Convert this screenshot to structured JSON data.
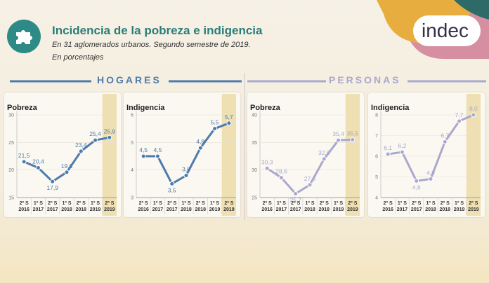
{
  "header": {
    "title": "Incidencia de la pobreza e indigencia",
    "subtitle": "En 31 aglomerados urbanos. Segundo semestre de 2019.",
    "units": "En porcentajes",
    "brand": "indec",
    "logo_icon": "puzzle-piece-icon"
  },
  "sections": {
    "hogares": "HOGARES",
    "personas": "PERSONAS"
  },
  "colors": {
    "hogares": "#4f7bab",
    "personas": "#a9a8cd",
    "teal": "#2a7d78",
    "highlight": "#eee0b2"
  },
  "chart_data": [
    {
      "type": "line",
      "group": "HOGARES",
      "title": "Pobreza",
      "categories": [
        [
          "2º S",
          "2016"
        ],
        [
          "1º S",
          "2017"
        ],
        [
          "2º S",
          "2017"
        ],
        [
          "1º S",
          "2018"
        ],
        [
          "2º S",
          "2018"
        ],
        [
          "1º S",
          "2019"
        ],
        [
          "2º S",
          "2019"
        ]
      ],
      "values": [
        21.5,
        20.4,
        17.9,
        19.6,
        23.4,
        25.4,
        25.9
      ],
      "labels": [
        "21,5",
        "20,4",
        "17,9",
        "19,6",
        "23,4",
        "25,4",
        "25,9"
      ],
      "ylim": [
        15,
        30
      ],
      "yticks": [
        "15",
        "20",
        "25",
        "30"
      ],
      "highlight_last": true
    },
    {
      "type": "line",
      "group": "HOGARES",
      "title": "Indigencia",
      "categories": [
        [
          "2º S",
          "2016"
        ],
        [
          "1º S",
          "2017"
        ],
        [
          "2º S",
          "2017"
        ],
        [
          "1º S",
          "2018"
        ],
        [
          "2º S",
          "2018"
        ],
        [
          "1º S",
          "2019"
        ],
        [
          "2º S",
          "2019"
        ]
      ],
      "values": [
        4.5,
        4.5,
        3.5,
        3.8,
        4.8,
        5.5,
        5.7
      ],
      "labels": [
        "4,5",
        "4,5",
        "3,5",
        "3,8",
        "4,8",
        "5,5",
        "5,7"
      ],
      "ylim": [
        3,
        6
      ],
      "yticks": [
        "3",
        "4",
        "5",
        "6"
      ],
      "highlight_last": true
    },
    {
      "type": "line",
      "group": "PERSONAS",
      "title": "Pobreza",
      "categories": [
        [
          "2º S",
          "2016"
        ],
        [
          "1º S",
          "2017"
        ],
        [
          "2º S",
          "2017"
        ],
        [
          "1º S",
          "2018"
        ],
        [
          "2º S",
          "2018"
        ],
        [
          "1º S",
          "2019"
        ],
        [
          "2º S",
          "2019"
        ]
      ],
      "values": [
        30.3,
        28.6,
        25.7,
        27.3,
        32.0,
        35.4,
        35.5
      ],
      "labels": [
        "30,3",
        "28,6",
        "25,7",
        "27,3",
        "32,0",
        "35,4",
        "35,5"
      ],
      "ylim": [
        25,
        40
      ],
      "yticks": [
        "25",
        "30",
        "35",
        "40"
      ],
      "highlight_last": true
    },
    {
      "type": "line",
      "group": "PERSONAS",
      "title": "Indigencia",
      "categories": [
        [
          "2º S",
          "2016"
        ],
        [
          "1º S",
          "2017"
        ],
        [
          "2º S",
          "2017"
        ],
        [
          "1º S",
          "2018"
        ],
        [
          "2º S",
          "2018"
        ],
        [
          "1º S",
          "2019"
        ],
        [
          "2º S",
          "2019"
        ]
      ],
      "values": [
        6.1,
        6.2,
        4.8,
        4.9,
        6.7,
        7.7,
        8.0
      ],
      "labels": [
        "6,1",
        "6,2",
        "4,8",
        "4,9",
        "6,7",
        "7,7",
        "8,0"
      ],
      "ylim": [
        4,
        8
      ],
      "yticks": [
        "4",
        "5",
        "6",
        "7",
        "8"
      ],
      "highlight_last": true
    }
  ]
}
